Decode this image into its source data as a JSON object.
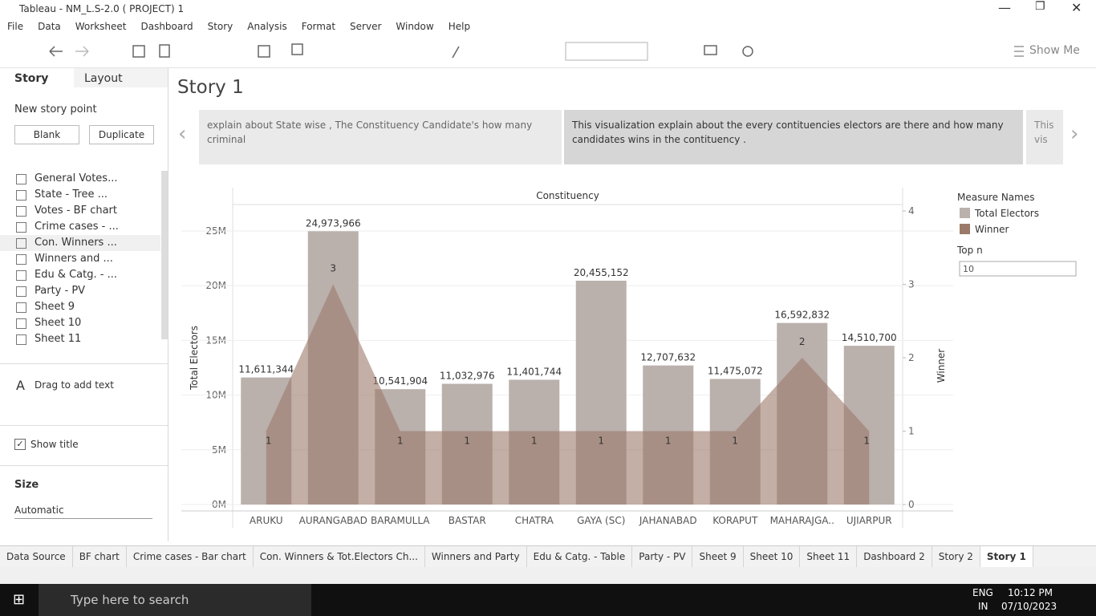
{
  "window": {
    "title": "Tableau - NM_L.S-2.0  ( PROJECT) 1"
  },
  "menu": [
    "File",
    "Data",
    "Worksheet",
    "Dashboard",
    "Story",
    "Analysis",
    "Format",
    "Server",
    "Window",
    "Help"
  ],
  "toolbar": {
    "show_me": "Show Me"
  },
  "sidebar": {
    "tabs": [
      "Story",
      "Layout"
    ],
    "new_story_point": "New story point",
    "buttons": [
      "Blank",
      "Duplicate"
    ],
    "sheets": [
      "General Votes...",
      "State  - Tree ...",
      "Votes - BF chart",
      "Crime cases - ...",
      "Con. Winners ...",
      "Winners and ...",
      "Edu & Catg. - ...",
      "Party - PV",
      "Sheet 9",
      "Sheet 10",
      "Sheet 11"
    ],
    "drag_text": "Drag to add text",
    "show_title": "Show title",
    "size_label": "Size",
    "size_value": "Automatic"
  },
  "story": {
    "title": "Story 1",
    "points": [
      "explain about State wise , The Constituency Candidate's how many criminal",
      "This visualization explain about the every contituencies electors are there and how many candidates wins in the contituency .",
      "This vis"
    ]
  },
  "chart_data": {
    "type": "bar_area",
    "column_header": "Constituency",
    "y_label": "Total Electors",
    "y2_label": "Winner",
    "categories": [
      "ARUKU",
      "AURANGABAD",
      "BARAMULLA",
      "BASTAR",
      "CHATRA",
      "GAYA (SC)",
      "JAHANABAD",
      "KORAPUT",
      "MAHARAJGA..",
      "UJIARPUR"
    ],
    "series": [
      {
        "name": "Total Electors",
        "color": "#bab0ac",
        "mark": "bar",
        "values": [
          11611344,
          24973966,
          10541904,
          11032976,
          11401744,
          20455152,
          12707632,
          11475072,
          16592832,
          14510700
        ],
        "value_labels": [
          "11,611,344",
          "24,973,966",
          "10,541,904",
          "11,032,976",
          "11,401,744",
          "20,455,152",
          "12,707,632",
          "11,475,072",
          "16,592,832",
          "14,510,700"
        ]
      },
      {
        "name": "Winner",
        "color": "#9c7a6a",
        "mark": "area",
        "axis": "y2",
        "values": [
          1,
          3,
          1,
          1,
          1,
          1,
          1,
          1,
          2,
          1
        ]
      }
    ],
    "ylim": [
      0,
      26830000
    ],
    "yticks": [
      {
        "value": 0,
        "label": "0M"
      },
      {
        "value": 5000000,
        "label": "5M"
      },
      {
        "value": 10000000,
        "label": "10M"
      },
      {
        "value": 15000000,
        "label": "15M"
      },
      {
        "value": 20000000,
        "label": "20M"
      },
      {
        "value": 25000000,
        "label": "25M"
      }
    ],
    "y2lim": [
      0,
      4
    ],
    "y2ticks": [
      0,
      1,
      2,
      3,
      4
    ],
    "grid": true,
    "legend_title": "Measure Names"
  },
  "parameter": {
    "label": "Top n",
    "value": "10"
  },
  "sheet_tabs": [
    "Data Source",
    "BF chart",
    "Crime cases - Bar chart",
    "Con. Winners & Tot.Electors Ch...",
    "Winners and Party",
    "Edu & Catg. - Table",
    "Party - PV",
    "Sheet 9",
    "Sheet 10",
    "Sheet 11",
    "Dashboard 2",
    "Story 2",
    "Story 1"
  ],
  "taskbar": {
    "search": "Type here to search",
    "lang": "ENG",
    "region": "IN",
    "time": "10:12 PM",
    "date": "07/10/2023"
  }
}
